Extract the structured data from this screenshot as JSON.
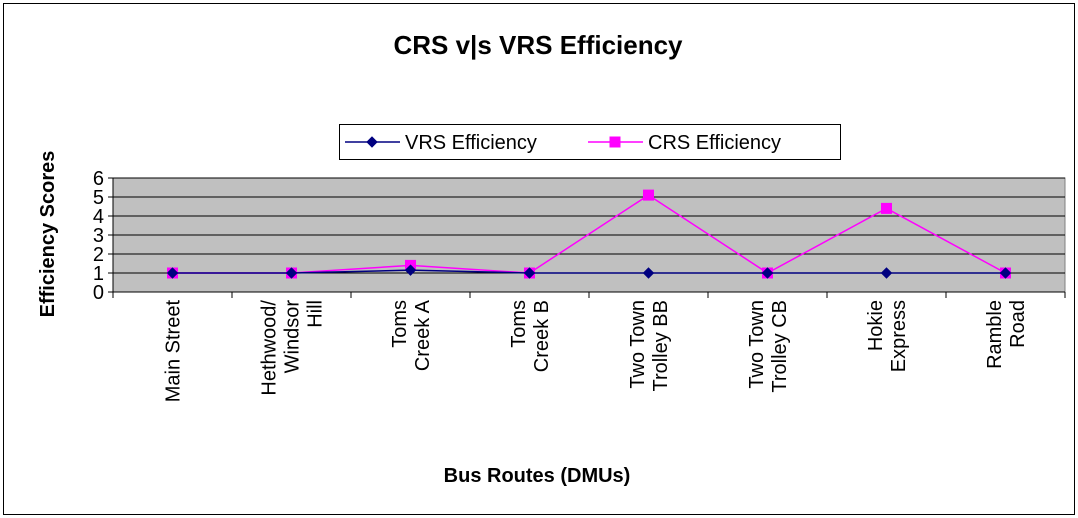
{
  "chart_data": {
    "type": "line",
    "title": "CRS v|s VRS Efficiency",
    "xlabel": "Bus Routes (DMUs)",
    "ylabel": "Efficiency Scores",
    "categories": [
      "Main Street",
      "Hethwood/\nWindsor\nHill",
      "Toms\nCreek A",
      "Toms\nCreek B",
      "Two Town\nTrolley BB",
      "Two Town\nTrolley CB",
      "Hokie\nExpress",
      "Ramble\nRoad"
    ],
    "series": [
      {
        "name": "VRS Efficiency",
        "color": "#000080",
        "marker": "diamond",
        "values": [
          1,
          1,
          1.15,
          1,
          1,
          1,
          1,
          1
        ]
      },
      {
        "name": "CRS Efficiency",
        "color": "#ff00ff",
        "marker": "square",
        "values": [
          1,
          1,
          1.4,
          1,
          5.1,
          1,
          4.4,
          1
        ]
      }
    ],
    "ylim": [
      0,
      6
    ],
    "yticks": [
      0,
      1,
      2,
      3,
      4,
      5,
      6
    ],
    "grid": true,
    "legend": "top"
  }
}
